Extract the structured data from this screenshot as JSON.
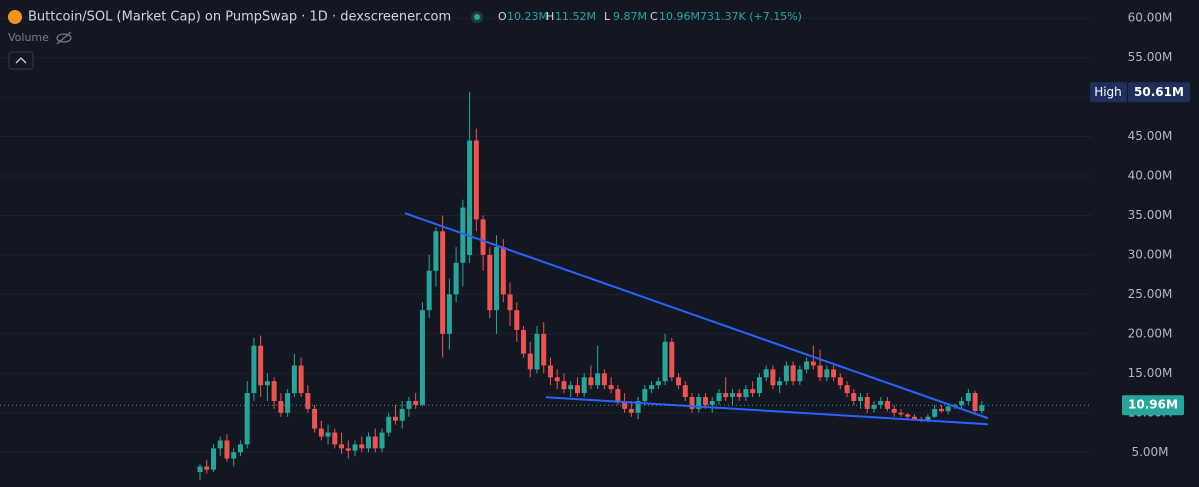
{
  "chart_data": {
    "type": "candlestick",
    "title": "Buttcoin/SOL (Market Cap) on PumpSwap · 1D · dexscreener.com",
    "legend": [
      {
        "key": "O",
        "text": "10.23M"
      },
      {
        "key": "H",
        "text": "11.52M"
      },
      {
        "key": "L",
        "text": "9.87M"
      },
      {
        "key": "C",
        "text": "10.96M"
      }
    ],
    "change": "731.37K (+7.15%)",
    "volume_label": "Volume",
    "up_color": "#26a69a",
    "down_color": "#ef5350",
    "grid": true,
    "ylim": [
      0.6,
      62.3
    ],
    "yticks": [
      {
        "value": 5,
        "label": "5.00M"
      },
      {
        "value": 10,
        "label": "10.00M"
      },
      {
        "value": 15,
        "label": "15.00M"
      },
      {
        "value": 20,
        "label": "20.00M"
      },
      {
        "value": 25,
        "label": "25.00M"
      },
      {
        "value": 30,
        "label": "30.00M"
      },
      {
        "value": 35,
        "label": "35.00M"
      },
      {
        "value": 40,
        "label": "40.00M"
      },
      {
        "value": 45,
        "label": "45.00M"
      },
      {
        "value": 50,
        "label": "50.00M"
      },
      {
        "value": 55,
        "label": "55.00M"
      },
      {
        "value": 60,
        "label": "60.00M"
      }
    ],
    "open": [
      2.5,
      3.2,
      2.8,
      5.5,
      6.5,
      4.2,
      5.0,
      6.0,
      12.5,
      18.5,
      13.5,
      14,
      11.5,
      10,
      12.5,
      16,
      12.5,
      10.5,
      8,
      7,
      7.5,
      6,
      5.5,
      5.2,
      6,
      5.5,
      7,
      5.5,
      7.5,
      9.5,
      9,
      10.5,
      11.5,
      11,
      23,
      28,
      33,
      20,
      25,
      29,
      30,
      44.5,
      34.5,
      30,
      23,
      31,
      25,
      23,
      20.5,
      17.5,
      15.5,
      20,
      16,
      14.5,
      14,
      13,
      13.5,
      12.5,
      14.5,
      13.5,
      15,
      13.5,
      13,
      11.5,
      10.5,
      10,
      11.5,
      13,
      13.5,
      14,
      19,
      14.5,
      13.5,
      12,
      10.5,
      12,
      11,
      11.5,
      12.5,
      12,
      12.5,
      12,
      13,
      12.5,
      14.5,
      15.5,
      13.5,
      14,
      16,
      14,
      15.5,
      16.5,
      16,
      14.5,
      15.5,
      14.5,
      13.5,
      12.5,
      11.5,
      12,
      10.5,
      11,
      11.5,
      10.5,
      10,
      9.8,
      9.5,
      9.2,
      9,
      9.5,
      10.5,
      10.2,
      10.8,
      11,
      11.5,
      12.5,
      10.23
    ],
    "high": [
      3.5,
      4.0,
      6.0,
      7.0,
      7.3,
      5.5,
      6.5,
      14,
      19.5,
      19.8,
      15,
      14.5,
      12.5,
      13,
      17.5,
      17,
      13.5,
      11,
      9,
      8.5,
      8,
      7.5,
      6.5,
      6.5,
      7,
      7.5,
      8,
      8,
      10,
      11,
      11.5,
      12,
      12.5,
      24,
      30,
      33.5,
      35,
      27,
      31,
      37,
      50.61,
      46,
      35,
      31,
      32.5,
      32,
      26.5,
      24,
      21,
      19,
      21,
      21.5,
      17,
      15.5,
      15,
      14,
      14.5,
      15,
      16,
      18.5,
      15.5,
      14.5,
      13.5,
      12.5,
      11.5,
      12,
      13.5,
      14,
      14.5,
      20,
      19.5,
      15,
      14,
      12.5,
      12.5,
      12.5,
      12,
      13,
      14.5,
      13,
      13,
      13.5,
      14,
      15,
      16,
      16,
      14.5,
      16.5,
      16.5,
      16,
      17,
      18.5,
      18,
      16,
      16,
      15,
      14,
      13,
      12.5,
      12.5,
      11.5,
      12,
      12,
      11,
      10.5,
      10,
      9.8,
      9.5,
      9.8,
      11,
      11,
      11,
      11.2,
      12,
      13,
      12.8,
      11.52
    ],
    "low": [
      1.5,
      2.3,
      2.5,
      4.5,
      3.8,
      3.2,
      4.5,
      5.5,
      11.5,
      12,
      11.5,
      10.5,
      9.5,
      9.5,
      12,
      12,
      10,
      7.5,
      6.5,
      6,
      5.5,
      4.8,
      4.2,
      4.5,
      5,
      5,
      5,
      5,
      7,
      8.5,
      8,
      9.5,
      10.5,
      10.8,
      22,
      26,
      17,
      18,
      24,
      26,
      29,
      33,
      28,
      22,
      20,
      24,
      21,
      19,
      17,
      14.5,
      15,
      15,
      13.5,
      13,
      12.5,
      12,
      12,
      12,
      13,
      13,
      13,
      12.5,
      11,
      10,
      9.5,
      9.2,
      11,
      12.5,
      13,
      13.5,
      14,
      13,
      11.5,
      10,
      10,
      10.5,
      10,
      11,
      11.5,
      11,
      11.5,
      11.5,
      12,
      12,
      14,
      13,
      12.5,
      13.5,
      13.5,
      13.5,
      15,
      15.5,
      14,
      14,
      14,
      13,
      12,
      11,
      10.5,
      10,
      10,
      10.5,
      10.2,
      9.5,
      9.5,
      9.2,
      9,
      8.8,
      8.8,
      9.3,
      10,
      9.8,
      10.5,
      10.5,
      11,
      9.8,
      9.87
    ],
    "close": [
      3.2,
      2.8,
      5.5,
      6.5,
      4.2,
      5.0,
      6.0,
      12.5,
      18.5,
      13.5,
      14,
      11.5,
      10,
      12.5,
      16,
      12.5,
      10.5,
      8,
      7,
      7.5,
      6,
      5.5,
      5.2,
      6,
      5.5,
      7,
      5.5,
      7.5,
      9.5,
      9,
      10.5,
      11.5,
      11,
      23,
      28,
      33,
      20,
      25,
      29,
      36,
      44.5,
      34.5,
      30,
      23,
      31,
      25,
      23,
      20.5,
      17.5,
      15.5,
      20,
      16,
      14.5,
      14,
      13,
      13.5,
      12.5,
      14.5,
      13.5,
      15,
      13.5,
      13,
      11.5,
      10.5,
      10,
      11.5,
      13,
      13.5,
      14,
      19,
      14.5,
      13.5,
      12,
      10.5,
      12,
      11,
      11.5,
      12.5,
      12,
      12.5,
      12,
      13,
      12.5,
      14.5,
      15.5,
      13.5,
      14,
      16,
      14,
      15.5,
      16.5,
      16,
      14.5,
      15.5,
      14.5,
      13.5,
      12.5,
      11.5,
      12,
      10.5,
      11,
      11.5,
      10.5,
      10,
      9.8,
      9.5,
      9.2,
      9,
      9.5,
      10.5,
      10.2,
      10.8,
      11,
      11.5,
      12.5,
      10.23,
      10.96
    ],
    "trendlines": [
      {
        "color": "#2962ff",
        "x": [
          30.4,
          116.9
        ],
        "y": [
          35.29,
          9.31
        ]
      },
      {
        "color": "#2962ff",
        "x": [
          51.3,
          116.9
        ],
        "y": [
          11.97,
          8.55
        ]
      }
    ],
    "high_marker": {
      "text": "High",
      "value": 50.61,
      "label": "50.61M"
    },
    "last_price": {
      "value": 10.96,
      "label": "10.96M",
      "color": "#26a69a"
    }
  }
}
